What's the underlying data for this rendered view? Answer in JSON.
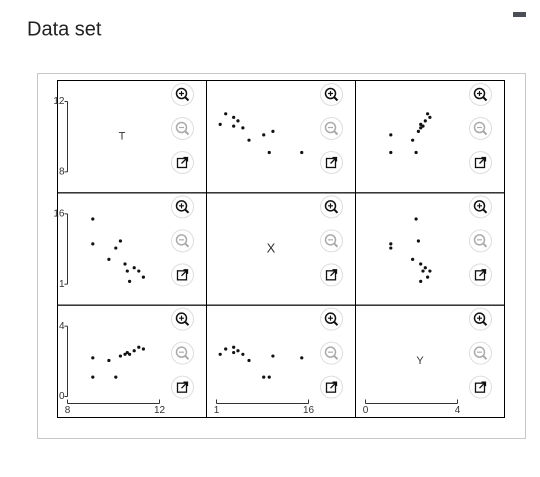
{
  "header": {
    "title": "Data set"
  },
  "chart_data": {
    "type": "scatter",
    "color": "#111111",
    "variables": [
      {
        "name": "T",
        "lim": [
          8,
          12
        ],
        "ticks": [
          8,
          12
        ],
        "values": [
          9.1,
          9.1,
          9.8,
          10.1,
          10.3,
          10.5,
          10.6,
          10.7,
          10.9,
          11.1,
          11.3
        ]
      },
      {
        "name": "X",
        "lim": [
          1,
          16
        ],
        "ticks": [
          1,
          16
        ],
        "values": [
          14.9,
          9.6,
          6.3,
          8.7,
          10.2,
          5.3,
          3.8,
          1.6,
          4.5,
          3.8,
          2.5
        ]
      },
      {
        "name": "Y",
        "lim": [
          0,
          4
        ],
        "ticks": [
          0,
          4
        ],
        "values": [
          2.2,
          1.1,
          2.05,
          1.1,
          2.3,
          2.4,
          2.5,
          2.4,
          2.6,
          2.8,
          2.7
        ]
      }
    ]
  }
}
